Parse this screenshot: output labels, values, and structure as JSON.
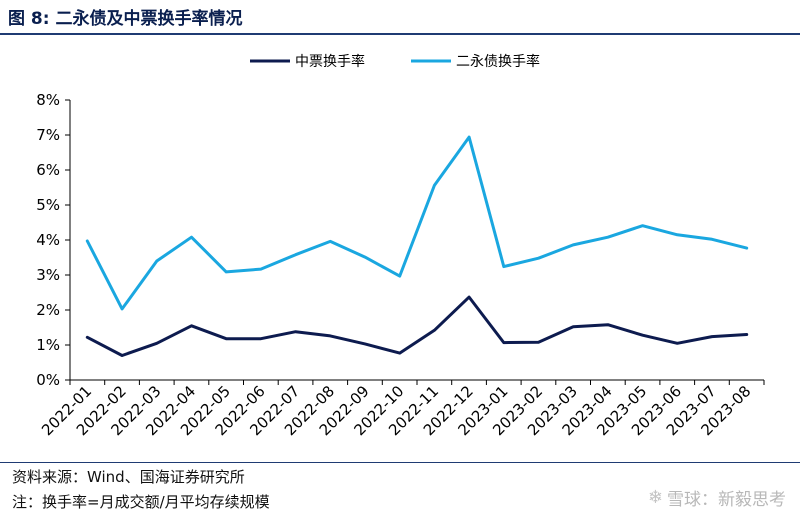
{
  "figure": {
    "title": "图 8:  二永债及中票换手率情况",
    "source_note": "资料来源：Wind、国海证券研究所",
    "footnote": "注：换手率=月成交额/月平均存续规模",
    "watermark": "雪球：新毅思考"
  },
  "chart_data": {
    "type": "line",
    "title": "",
    "xlabel": "",
    "ylabel": "",
    "x": [
      "2022-01",
      "2022-02",
      "2022-03",
      "2022-04",
      "2022-05",
      "2022-06",
      "2022-07",
      "2022-08",
      "2022-09",
      "2022-10",
      "2022-11",
      "2022-12",
      "2023-01",
      "2023-02",
      "2023-03",
      "2023-04",
      "2023-05",
      "2023-06",
      "2023-07",
      "2023-08"
    ],
    "ylim": [
      0,
      8
    ],
    "yticks": [
      "0%",
      "1%",
      "2%",
      "3%",
      "4%",
      "5%",
      "6%",
      "7%",
      "8%"
    ],
    "grid": false,
    "legend_position": "top",
    "series": [
      {
        "name": "中票换手率",
        "color": "#0d1b4f",
        "values": [
          1.22,
          0.7,
          1.05,
          1.55,
          1.18,
          1.18,
          1.38,
          1.26,
          1.03,
          0.77,
          1.42,
          2.37,
          1.07,
          1.08,
          1.52,
          1.58,
          1.28,
          1.05,
          1.24,
          1.3
        ]
      },
      {
        "name": "二永债换手率",
        "color": "#1aa7e0",
        "values": [
          3.97,
          2.03,
          3.4,
          4.08,
          3.09,
          3.17,
          3.58,
          3.96,
          3.51,
          2.97,
          5.56,
          6.94,
          3.24,
          3.48,
          3.86,
          4.08,
          4.41,
          4.15,
          4.02,
          3.77
        ]
      }
    ]
  }
}
